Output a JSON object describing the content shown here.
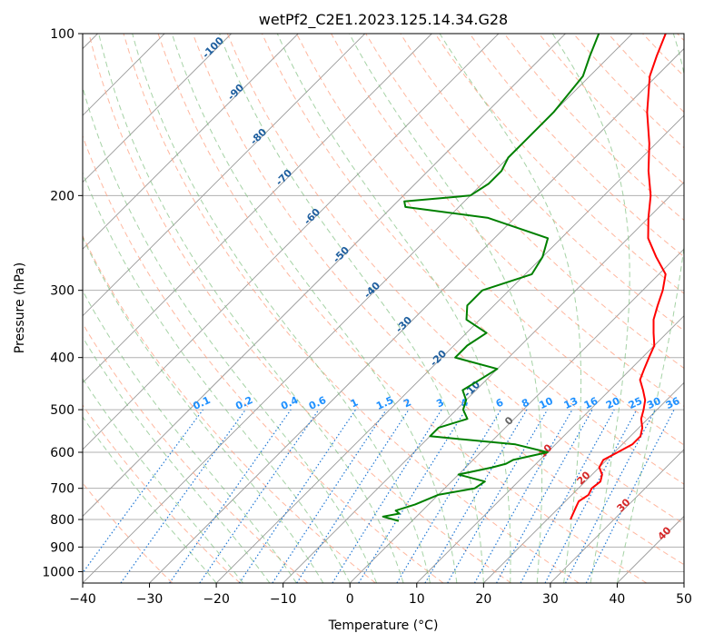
{
  "chart_data": {
    "type": "line",
    "title": "wetPf2_C2E1.2023.125.14.34.G28",
    "xlabel": "Temperature (°C)",
    "ylabel": "Pressure (hPa)",
    "xlim": [
      -40,
      50
    ],
    "ylim": [
      1050,
      100
    ],
    "y_scale": "log",
    "x_ticks": [
      "-40",
      "-30",
      "-20",
      "-10",
      "0",
      "10",
      "20",
      "30",
      "40",
      "50"
    ],
    "y_ticks": [
      "100",
      "200",
      "300",
      "400",
      "500",
      "600",
      "700",
      "800",
      "900",
      "1000"
    ],
    "grid": true,
    "colors": {
      "temperature": "#ff0000",
      "dewpoint": "#008000",
      "isotherm": "#999999",
      "dry_adiabat": "#ff9f7f",
      "moist_adiabat": "#7fbf7f",
      "mixing_ratio": "#1f77d4",
      "label_cold": "#1f5f9f",
      "label_warm": "#d62728",
      "label_mixing": "#1e90ff"
    },
    "series": [
      {
        "key": "temperature",
        "pressure": [
          800,
          780,
          760,
          740,
          720,
          700,
          680,
          660,
          640,
          620,
          600,
          580,
          560,
          540,
          520,
          500,
          480,
          460,
          440,
          420,
          400,
          380,
          360,
          340,
          320,
          300,
          280,
          260,
          240,
          220,
          200,
          180,
          160,
          140,
          120,
          110,
          100
        ],
        "x_at_800": 23.5,
        "temp": [
          23.5,
          23.0,
          22.5,
          22.0,
          22.5,
          22.0,
          22.3,
          21.5,
          20.0,
          19.5,
          20.5,
          21.5,
          21.5,
          20.5,
          19.0,
          18.0,
          16.8,
          15.0,
          13.0,
          12.0,
          11.0,
          10.0,
          8.0,
          6.0,
          4.5,
          3.0,
          1.0,
          -3.0,
          -7.0,
          -10.0,
          -13.0,
          -17.0,
          -21.0,
          -26.0,
          -31.0,
          -33.0,
          -35.0
        ]
      },
      {
        "key": "dewpoint",
        "pressure": [
          805,
          790,
          780,
          770,
          750,
          720,
          700,
          680,
          660,
          640,
          630,
          620,
          600,
          580,
          560,
          540,
          520,
          500,
          480,
          460,
          440,
          420,
          400,
          380,
          360,
          340,
          320,
          300,
          280,
          260,
          240,
          220,
          210,
          205,
          200,
          190,
          180,
          170,
          160,
          150,
          140,
          120,
          110,
          100
        ],
        "dewp": [
          -2.0,
          -5.0,
          -3.0,
          -4.0,
          -2.0,
          0.0,
          4.5,
          5.0,
          0.0,
          4.0,
          5.5,
          6.0,
          10.0,
          4.0,
          -10.0,
          -10.0,
          -7.0,
          -9.0,
          -10.0,
          -12.0,
          -11.0,
          -10.0,
          -18.0,
          -18.0,
          -17.0,
          -22.0,
          -24.0,
          -24.0,
          -19.0,
          -20.0,
          -22.0,
          -34.0,
          -48.0,
          -49.0,
          -40.0,
          -39.0,
          -39.0,
          -40.0,
          -40.0,
          -40.0,
          -40.0,
          -41.0,
          -43.0,
          -45.0
        ]
      }
    ],
    "mixing_ratio_labels": [
      "0.1",
      "0.2",
      "0.4",
      "0.6",
      "1",
      "1.5",
      "2",
      "3",
      "4",
      "6",
      "8",
      "10",
      "13",
      "16",
      "20",
      "25",
      "30",
      "36"
    ],
    "moist_adiabat_labels": [
      "-100",
      "-90",
      "-80",
      "-70",
      "-60",
      "-50",
      "-40",
      "-30",
      "-20",
      "-10"
    ],
    "warm_adiabat_labels": [
      "0",
      "10",
      "20",
      "30",
      "40"
    ]
  }
}
